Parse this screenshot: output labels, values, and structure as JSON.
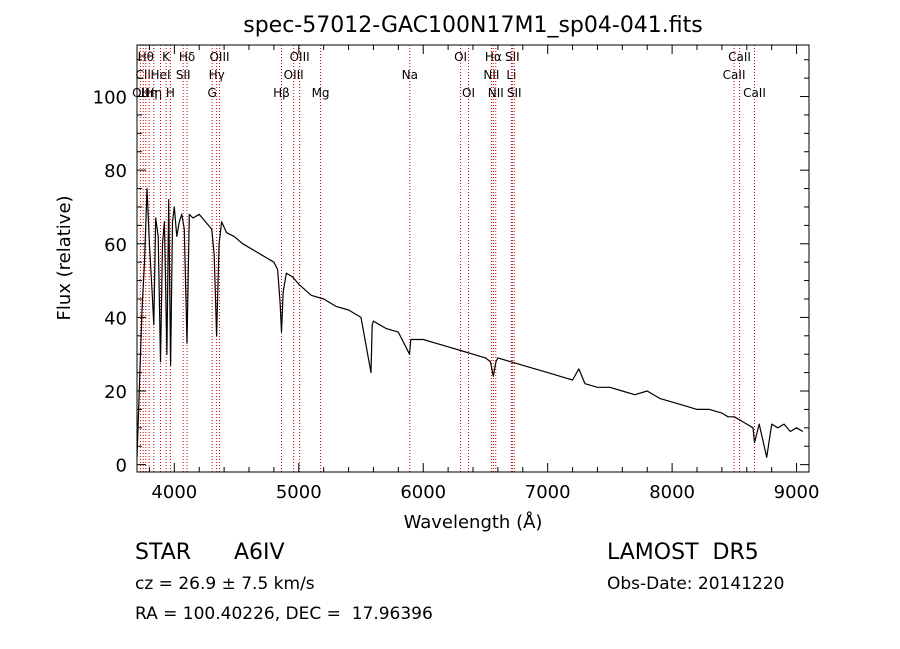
{
  "chart_data": {
    "type": "line",
    "title": "spec-57012-GAC100N17M1_sp04-041.fits",
    "xlabel": "Wavelength (Å)",
    "ylabel": "Flux (relative)",
    "xlim": [
      3700,
      9100
    ],
    "ylim": [
      -2,
      114
    ],
    "xticks": [
      4000,
      5000,
      6000,
      7000,
      8000,
      9000
    ],
    "yticks": [
      0,
      20,
      40,
      60,
      80,
      100
    ],
    "grid": false,
    "series": [
      {
        "x": [
          3700,
          3720,
          3740,
          3760,
          3780,
          3800,
          3820,
          3835,
          3850,
          3870,
          3889,
          3905,
          3920,
          3940,
          3955,
          3970,
          3985,
          4000,
          4020,
          4040,
          4060,
          4080,
          4102,
          4120,
          4150,
          4200,
          4250,
          4300,
          4320,
          4340,
          4360,
          4380,
          4420,
          4480,
          4550,
          4650,
          4700,
          4750,
          4800,
          4830,
          4850,
          4861,
          4875,
          4900,
          4950,
          5000,
          5100,
          5200,
          5300,
          5400,
          5500,
          5580,
          5590,
          5600,
          5700,
          5800,
          5890,
          5900,
          6000,
          6100,
          6200,
          6300,
          6400,
          6500,
          6540,
          6563,
          6585,
          6600,
          6700,
          6800,
          6900,
          7000,
          7100,
          7200,
          7250,
          7300,
          7400,
          7500,
          7600,
          7700,
          7800,
          7900,
          8000,
          8100,
          8200,
          8300,
          8400,
          8450,
          8500,
          8550,
          8600,
          8650,
          8662,
          8700,
          8760,
          8800,
          8850,
          8900,
          8950,
          9000,
          9050
        ],
        "values": [
          2,
          22,
          42,
          55,
          75,
          60,
          48,
          38,
          67,
          62,
          28,
          60,
          66,
          30,
          72,
          27,
          66,
          70,
          62,
          66,
          68,
          64,
          33,
          68,
          67,
          68,
          66,
          64,
          57,
          35,
          60,
          66,
          63,
          62,
          60,
          58,
          57,
          56,
          55,
          53,
          44,
          36,
          47,
          52,
          51,
          49,
          46,
          45,
          43,
          42,
          40,
          25,
          38,
          39,
          37,
          36,
          30,
          34,
          34,
          33,
          32,
          31,
          30,
          29,
          28,
          24,
          28,
          29,
          28,
          27,
          26,
          25,
          24,
          23,
          26,
          22,
          21,
          21,
          20,
          19,
          20,
          18,
          17,
          16,
          15,
          15,
          14,
          13,
          13,
          12,
          11,
          10,
          6,
          11,
          2,
          11,
          10,
          11,
          9,
          10,
          9
        ]
      }
    ],
    "lines": [
      {
        "x": 3727,
        "label": "OII",
        "row": 2
      },
      {
        "x": 3750,
        "label": "CII",
        "row": 1
      },
      {
        "x": 3771,
        "label": "Hθ",
        "row": 0
      },
      {
        "x": 3798,
        "label": "Hη",
        "row": 2
      },
      {
        "x": 3835,
        "label": "Hη",
        "row": 2
      },
      {
        "x": 3889,
        "label": "HeI",
        "row": 1
      },
      {
        "x": 3934,
        "label": "K",
        "row": 0
      },
      {
        "x": 3968,
        "label": "H",
        "row": 2
      },
      {
        "x": 4071,
        "label": "SII",
        "row": 1
      },
      {
        "x": 4102,
        "label": "Hδ",
        "row": 0
      },
      {
        "x": 4304,
        "label": "G",
        "row": 2
      },
      {
        "x": 4340,
        "label": "Hγ",
        "row": 1
      },
      {
        "x": 4363,
        "label": "OIII",
        "row": 0
      },
      {
        "x": 4861,
        "label": "Hβ",
        "row": 2
      },
      {
        "x": 4959,
        "label": "OIII",
        "row": 1
      },
      {
        "x": 5007,
        "label": "OIII",
        "row": 0
      },
      {
        "x": 5175,
        "label": "Mg",
        "row": 2
      },
      {
        "x": 5892,
        "label": "Na",
        "row": 1
      },
      {
        "x": 6300,
        "label": "OI",
        "row": 0
      },
      {
        "x": 6364,
        "label": "OI",
        "row": 2
      },
      {
        "x": 6548,
        "label": "NII",
        "row": 1
      },
      {
        "x": 6563,
        "label": "Hα",
        "row": 0
      },
      {
        "x": 6583,
        "label": "NII",
        "row": 2
      },
      {
        "x": 6708,
        "label": "Li",
        "row": 1
      },
      {
        "x": 6716,
        "label": "SII",
        "row": 0
      },
      {
        "x": 6731,
        "label": "SII",
        "row": 2
      },
      {
        "x": 8498,
        "label": "CaII",
        "row": 1
      },
      {
        "x": 8542,
        "label": "CaII",
        "row": 0
      },
      {
        "x": 8662,
        "label": "CaII",
        "row": 2
      }
    ],
    "line_color": "#cc0000",
    "series_color": "#000000"
  },
  "info": {
    "object_class": "STAR",
    "subclass": "A6IV",
    "survey": "LAMOST  DR5",
    "redshift": "cz = 26.9 ± 7.5 km/s",
    "obs_date": "Obs-Date: 20141220",
    "coords": "RA = 100.40226, DEC =  17.96396"
  }
}
